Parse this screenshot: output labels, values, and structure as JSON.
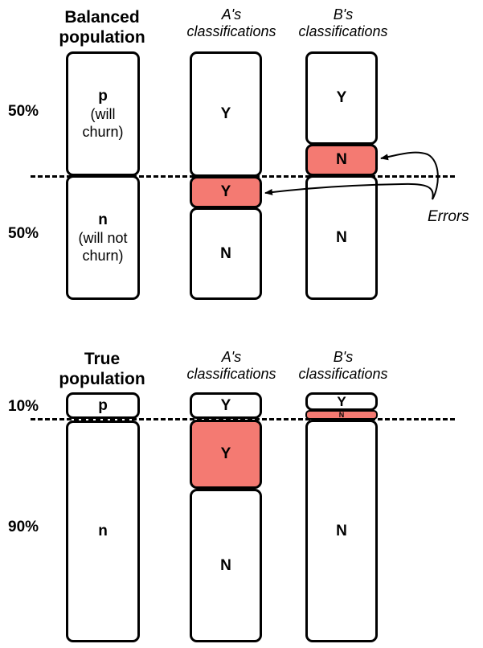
{
  "top": {
    "heading_population": "Balanced\npopulation",
    "heading_a": "A's\nclassifications",
    "heading_b": "B's\nclassifications",
    "pct_upper": "50%",
    "pct_lower": "50%",
    "p_label": "p",
    "p_sub": "(will\nchurn)",
    "n_label": "n",
    "n_sub": "(will not\nchurn)",
    "a_upper": "Y",
    "a_error": "Y",
    "a_lower": "N",
    "b_upper": "Y",
    "b_error": "N",
    "b_lower": "N",
    "errors_label": "Errors"
  },
  "bottom": {
    "heading_population": "True\npopulation",
    "heading_a": "A's\nclassifications",
    "heading_b": "B's\nclassifications",
    "pct_upper": "10%",
    "pct_lower": "90%",
    "p_label": "p",
    "n_label": "n",
    "a_upper": "Y",
    "a_error": "Y",
    "a_lower": "N",
    "b_upper": "Y",
    "b_error": "N",
    "b_lower": "N"
  },
  "colors": {
    "error_fill": "#f47a72",
    "outline": "#000000"
  }
}
